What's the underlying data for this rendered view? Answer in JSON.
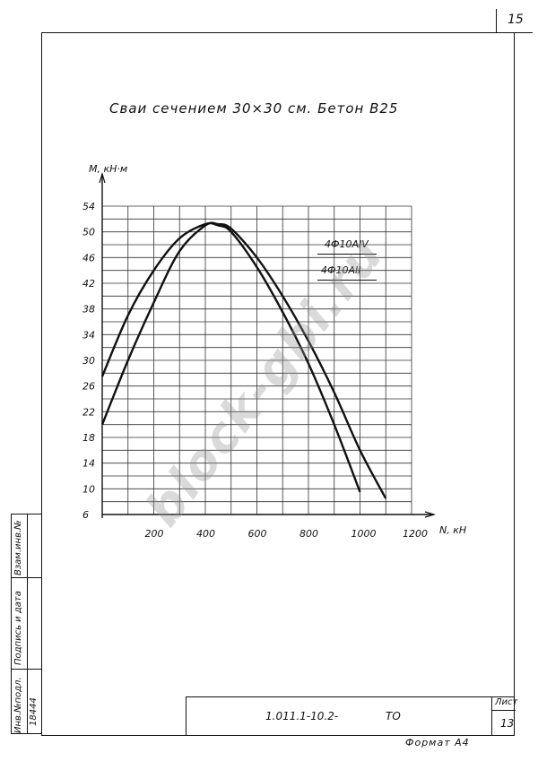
{
  "page_number": "15",
  "heading": "Сваи сечением 30×30 см. Бетон В25",
  "legend": {
    "item1": "4Ф10АIV",
    "item2": "4Ф10АII"
  },
  "stamp": {
    "inv_no_podl_label": "Инв.№подл.",
    "inv_no_podl_value": "18444",
    "signature_date_label": "Подпись и дата",
    "vzam_inv_label": "Взам.инв.№"
  },
  "title_block": {
    "doc_code": "1.011.1-10.2-",
    "doc_type": "ТО",
    "sheet_label": "Лист",
    "sheet_value": "13"
  },
  "format_label": "Формат А4",
  "watermark": "block-gbi.ru",
  "chart_data": {
    "type": "line",
    "xlabel": "N, кН",
    "ylabel": "M, кН·м",
    "xlim": [
      0,
      1200
    ],
    "ylim": [
      6,
      54
    ],
    "x_ticks": [
      200,
      400,
      600,
      800,
      1000,
      1200
    ],
    "y_ticks": [
      6,
      10,
      14,
      18,
      22,
      26,
      30,
      34,
      38,
      42,
      46,
      50,
      54
    ],
    "grid": true,
    "series": [
      {
        "name": "4Ф10АIV",
        "x": [
          0,
          100,
          200,
          300,
          400,
          450,
          500,
          600,
          700,
          800,
          900,
          1000,
          1100
        ],
        "y": [
          20,
          30,
          39,
          47,
          51,
          51.2,
          50.5,
          46,
          40,
          33,
          25,
          16,
          8.5
        ]
      },
      {
        "name": "4Ф10АII",
        "x": [
          0,
          100,
          200,
          300,
          400,
          450,
          500,
          600,
          700,
          800,
          900,
          1000
        ],
        "y": [
          27.5,
          37,
          44,
          49,
          51.2,
          51,
          50,
          44.5,
          37.5,
          29.5,
          20,
          9.5
        ]
      }
    ]
  }
}
